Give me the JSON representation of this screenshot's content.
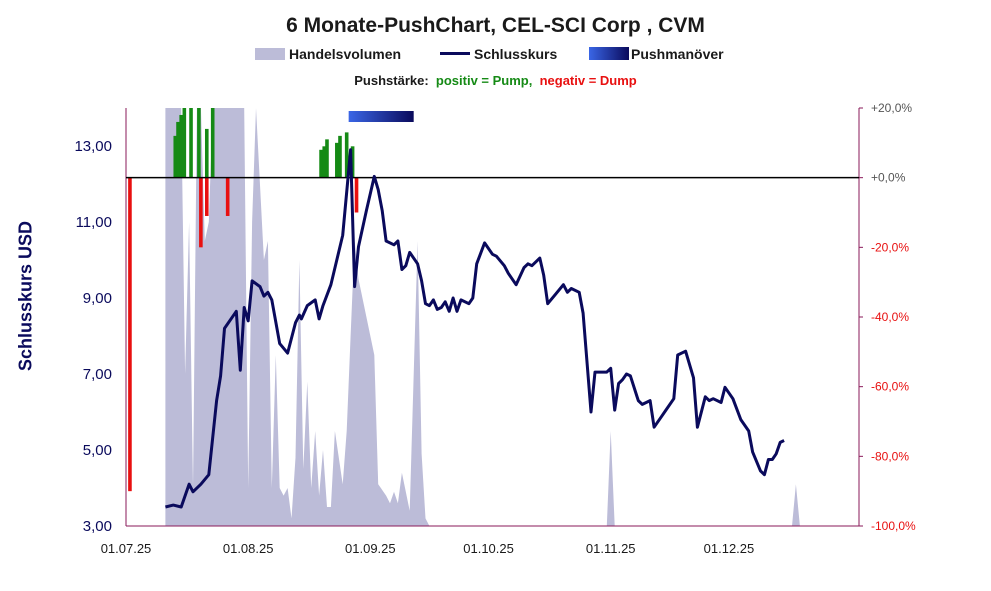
{
  "chart_data": {
    "type": "line",
    "title": "6 Monate-PushChart, CEL-SCI Corp , CVM",
    "legend": [
      {
        "label": "Handelsvolumen",
        "color": "#bcbcd8"
      },
      {
        "label": "Schlusskurs",
        "color": "#0a0a5c"
      },
      {
        "label": "Pushmanöver",
        "color": "#3a66e6"
      }
    ],
    "subtitle": {
      "prefix": "Pushstärke:",
      "positive": "positiv = Pump,",
      "negative": "negativ = Dump"
    },
    "ylabel": "Schlusskurs USD",
    "ylim": [
      3,
      14
    ],
    "y2lim": [
      -100,
      20
    ],
    "y_ticks": [
      "3,00",
      "5,00",
      "7,00",
      "9,00",
      "11,00",
      "13,00"
    ],
    "y2_ticks": [
      "-100,0%",
      "-80,0%",
      "-60,0%",
      "-40,0%",
      "-20,0%",
      "+0,0%",
      "+20,0%"
    ],
    "x_ticks": [
      {
        "label": "01.07.25",
        "day": 0
      },
      {
        "label": "01.08.25",
        "day": 31
      },
      {
        "label": "01.09.25",
        "day": 62
      },
      {
        "label": "01.10.25",
        "day": 92
      },
      {
        "label": "01.11.25",
        "day": 123
      },
      {
        "label": "01.12.25",
        "day": 153
      }
    ],
    "x_range_days": [
      0,
      186
    ],
    "colors": {
      "price": "#0a0a5c",
      "volume": "#bcbcd8",
      "pump": "#158a15",
      "dump": "#e81010",
      "axis2": "#8a1a5a",
      "push_start": "#3a66e6",
      "push_end": "#0a0a5c"
    },
    "price_series": [
      [
        10,
        3.5
      ],
      [
        12,
        3.55
      ],
      [
        14,
        3.5
      ],
      [
        16,
        4.1
      ],
      [
        17,
        3.9
      ],
      [
        19,
        4.1
      ],
      [
        21,
        4.35
      ],
      [
        23,
        6.3
      ],
      [
        24,
        6.95
      ],
      [
        25,
        8.2
      ],
      [
        28,
        8.65
      ],
      [
        29,
        7.1
      ],
      [
        30,
        8.75
      ],
      [
        31,
        8.4
      ],
      [
        32,
        9.45
      ],
      [
        34,
        9.3
      ],
      [
        35,
        9.05
      ],
      [
        36,
        9.15
      ],
      [
        37,
        8.95
      ],
      [
        39,
        7.8
      ],
      [
        41,
        7.55
      ],
      [
        43,
        8.35
      ],
      [
        44,
        8.55
      ],
      [
        44.5,
        8.45
      ],
      [
        46,
        8.8
      ],
      [
        48,
        8.95
      ],
      [
        49,
        8.45
      ],
      [
        50,
        8.8
      ],
      [
        52,
        9.35
      ],
      [
        55,
        10.65
      ],
      [
        57,
        12.9
      ],
      [
        58,
        9.3
      ],
      [
        59,
        10.35
      ],
      [
        61,
        11.3
      ],
      [
        63,
        12.2
      ],
      [
        64,
        11.85
      ],
      [
        65,
        11.3
      ],
      [
        66,
        10.5
      ],
      [
        68,
        10.4
      ],
      [
        69,
        10.5
      ],
      [
        70,
        9.75
      ],
      [
        71,
        9.85
      ],
      [
        72,
        10.2
      ],
      [
        74,
        9.9
      ],
      [
        75,
        9.45
      ],
      [
        76,
        8.85
      ],
      [
        77,
        8.8
      ],
      [
        78,
        8.95
      ],
      [
        79,
        8.7
      ],
      [
        80,
        8.75
      ],
      [
        81,
        8.9
      ],
      [
        82,
        8.65
      ],
      [
        83,
        9.0
      ],
      [
        84,
        8.65
      ],
      [
        85,
        8.95
      ],
      [
        87,
        8.85
      ],
      [
        88,
        9.0
      ],
      [
        89,
        9.9
      ],
      [
        91,
        10.45
      ],
      [
        93,
        10.15
      ],
      [
        94,
        10.1
      ],
      [
        96,
        9.85
      ],
      [
        97,
        9.65
      ],
      [
        99,
        9.35
      ],
      [
        101,
        9.8
      ],
      [
        102,
        9.9
      ],
      [
        103,
        9.85
      ],
      [
        105,
        10.05
      ],
      [
        106,
        9.6
      ],
      [
        107,
        8.85
      ],
      [
        109,
        9.1
      ],
      [
        111,
        9.35
      ],
      [
        112,
        9.15
      ],
      [
        113,
        9.25
      ],
      [
        115,
        9.15
      ],
      [
        116,
        8.6
      ],
      [
        118,
        6.0
      ],
      [
        119,
        7.05
      ],
      [
        122,
        7.05
      ],
      [
        123,
        7.15
      ],
      [
        124,
        6.05
      ],
      [
        125,
        6.75
      ],
      [
        126,
        6.85
      ],
      [
        127,
        7.0
      ],
      [
        128,
        6.95
      ],
      [
        130,
        6.3
      ],
      [
        131,
        6.2
      ],
      [
        133,
        6.3
      ],
      [
        134,
        5.6
      ],
      [
        136,
        5.9
      ],
      [
        137,
        6.05
      ],
      [
        139,
        6.35
      ],
      [
        140,
        7.5
      ],
      [
        142,
        7.6
      ],
      [
        144,
        6.9
      ],
      [
        145,
        5.6
      ],
      [
        147,
        6.4
      ],
      [
        148,
        6.3
      ],
      [
        149,
        6.35
      ],
      [
        151,
        6.25
      ],
      [
        152,
        6.65
      ],
      [
        154,
        6.35
      ],
      [
        156,
        5.8
      ],
      [
        158,
        5.5
      ],
      [
        159,
        4.95
      ],
      [
        161,
        4.45
      ],
      [
        162,
        4.35
      ],
      [
        163,
        4.75
      ],
      [
        164,
        4.75
      ],
      [
        165,
        4.9
      ],
      [
        166,
        5.2
      ],
      [
        167,
        5.25
      ]
    ],
    "volume_series": [
      [
        10,
        3
      ],
      [
        10,
        14
      ],
      [
        14,
        14
      ],
      [
        15,
        7
      ],
      [
        16,
        11
      ],
      [
        17,
        4
      ],
      [
        18,
        14
      ],
      [
        19,
        14
      ],
      [
        20,
        10.5
      ],
      [
        21,
        11
      ],
      [
        22,
        14
      ],
      [
        28,
        14
      ],
      [
        30,
        14
      ],
      [
        31,
        4
      ],
      [
        32,
        11
      ],
      [
        33,
        14
      ],
      [
        35,
        10
      ],
      [
        36,
        10.5
      ],
      [
        37,
        4
      ],
      [
        38,
        7.5
      ],
      [
        39,
        4
      ],
      [
        40,
        3.8
      ],
      [
        41,
        4
      ],
      [
        42,
        3.2
      ],
      [
        43,
        4.8
      ],
      [
        44,
        10
      ],
      [
        45,
        4.5
      ],
      [
        46,
        6.8
      ],
      [
        47,
        4
      ],
      [
        48,
        5.5
      ],
      [
        49,
        3.8
      ],
      [
        50,
        5
      ],
      [
        51,
        3.5
      ],
      [
        52,
        3.5
      ],
      [
        53,
        5.5
      ],
      [
        55,
        4.1
      ],
      [
        56,
        5.5
      ],
      [
        57,
        8
      ],
      [
        58,
        10.5
      ],
      [
        59,
        9.5
      ],
      [
        61,
        8.5
      ],
      [
        63,
        7.5
      ],
      [
        64,
        4.1
      ],
      [
        66,
        3.8
      ],
      [
        67,
        3.6
      ],
      [
        68,
        3.9
      ],
      [
        69,
        3.6
      ],
      [
        70,
        4.4
      ],
      [
        72,
        3.4
      ],
      [
        74,
        10.5
      ],
      [
        75,
        4.9
      ],
      [
        76,
        3.2
      ],
      [
        77,
        3
      ],
      [
        122,
        3
      ],
      [
        123,
        5.5
      ],
      [
        124,
        3
      ],
      [
        169,
        3
      ],
      [
        170,
        4.1
      ],
      [
        171,
        3
      ],
      [
        171,
        3
      ]
    ],
    "pump_bars": [
      {
        "day": 12.5,
        "pct": 12
      },
      {
        "day": 13.2,
        "pct": 16
      },
      {
        "day": 14,
        "pct": 18
      },
      {
        "day": 14.8,
        "pct": 21
      },
      {
        "day": 16.5,
        "pct": 28
      },
      {
        "day": 18.5,
        "pct": 25
      },
      {
        "day": 20.5,
        "pct": 14
      },
      {
        "day": 22,
        "pct": 20
      },
      {
        "day": 49.5,
        "pct": 8
      },
      {
        "day": 50.3,
        "pct": 9
      },
      {
        "day": 51,
        "pct": 11
      },
      {
        "day": 53.5,
        "pct": 10
      },
      {
        "day": 54.3,
        "pct": 12
      },
      {
        "day": 56,
        "pct": 13
      },
      {
        "day": 57.5,
        "pct": 9
      }
    ],
    "dump_bars": [
      {
        "day": 1,
        "pct": -90
      },
      {
        "day": 19,
        "pct": -20
      },
      {
        "day": 20.5,
        "pct": -11
      },
      {
        "day": 25.8,
        "pct": -11
      },
      {
        "day": 58.5,
        "pct": -10
      }
    ],
    "push_manoeuvre": {
      "start_day": 56.5,
      "end_day": 73
    }
  }
}
